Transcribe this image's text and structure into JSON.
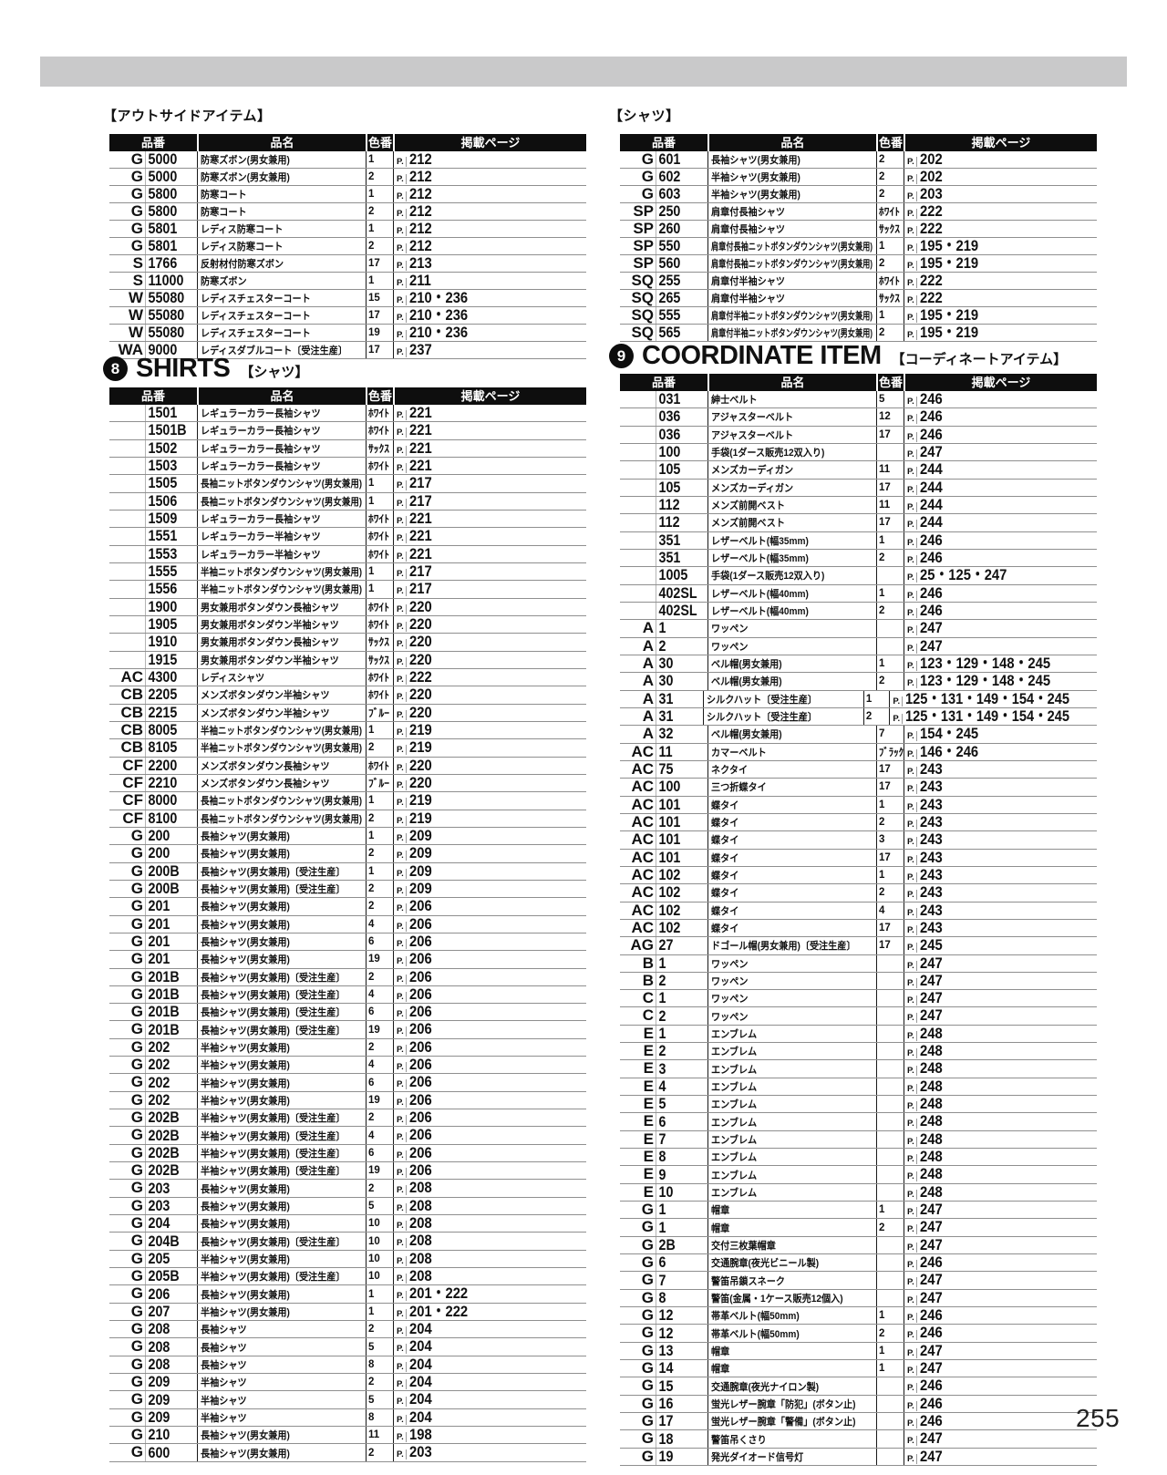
{
  "page_number": "255",
  "page_prefix": "P.",
  "col_headers": [
    "品番",
    "品名",
    "色番",
    "掲載ページ"
  ],
  "sections": {
    "outside": {
      "title": "【アウトサイドアイテム】",
      "rows": [
        [
          "G",
          "5000",
          "防寒ズボン(男女兼用)",
          "1",
          "212"
        ],
        [
          "G",
          "5000",
          "防寒ズボン(男女兼用)",
          "2",
          "212"
        ],
        [
          "G",
          "5800",
          "防寒コート",
          "1",
          "212"
        ],
        [
          "G",
          "5800",
          "防寒コート",
          "2",
          "212"
        ],
        [
          "G",
          "5801",
          "レディス防寒コート",
          "1",
          "212"
        ],
        [
          "G",
          "5801",
          "レディス防寒コート",
          "2",
          "212"
        ],
        [
          "S",
          "1766",
          "反射材付防寒ズボン",
          "17",
          "213"
        ],
        [
          "S",
          "11000",
          "防寒ズボン",
          "1",
          "211"
        ],
        [
          "W",
          "55080",
          "レディスチェスターコート",
          "15",
          "210・236"
        ],
        [
          "W",
          "55080",
          "レディスチェスターコート",
          "17",
          "210・236"
        ],
        [
          "W",
          "55080",
          "レディスチェスターコート",
          "19",
          "210・236"
        ],
        [
          "WA",
          "9000",
          "レディスダブルコート〔受注生産〕",
          "17",
          "237"
        ]
      ]
    },
    "shirts": {
      "badge": "8",
      "title": "SHIRTS",
      "subtitle": "【シャツ】",
      "rows": [
        [
          "",
          "1501",
          "レギュラーカラー長袖シャツ",
          "ﾎﾜｲﾄ",
          "221"
        ],
        [
          "",
          "1501B",
          "レギュラーカラー長袖シャツ",
          "ﾎﾜｲﾄ",
          "221"
        ],
        [
          "",
          "1502",
          "レギュラーカラー長袖シャツ",
          "ｻｯｸｽ",
          "221"
        ],
        [
          "",
          "1503",
          "レギュラーカラー長袖シャツ",
          "ﾎﾜｲﾄ",
          "221"
        ],
        [
          "",
          "1505",
          "長袖ニットボタンダウンシャツ(男女兼用)",
          "1",
          "217"
        ],
        [
          "",
          "1506",
          "長袖ニットボタンダウンシャツ(男女兼用)",
          "1",
          "217"
        ],
        [
          "",
          "1509",
          "レギュラーカラー長袖シャツ",
          "ﾎﾜｲﾄ",
          "221"
        ],
        [
          "",
          "1551",
          "レギュラーカラー半袖シャツ",
          "ﾎﾜｲﾄ",
          "221"
        ],
        [
          "",
          "1553",
          "レギュラーカラー半袖シャツ",
          "ﾎﾜｲﾄ",
          "221"
        ],
        [
          "",
          "1555",
          "半袖ニットボタンダウンシャツ(男女兼用)",
          "1",
          "217"
        ],
        [
          "",
          "1556",
          "半袖ニットボタンダウンシャツ(男女兼用)",
          "1",
          "217"
        ],
        [
          "",
          "1900",
          "男女兼用ボタンダウン長袖シャツ",
          "ﾎﾜｲﾄ",
          "220"
        ],
        [
          "",
          "1905",
          "男女兼用ボタンダウン半袖シャツ",
          "ﾎﾜｲﾄ",
          "220"
        ],
        [
          "",
          "1910",
          "男女兼用ボタンダウン長袖シャツ",
          "ｻｯｸｽ",
          "220"
        ],
        [
          "",
          "1915",
          "男女兼用ボタンダウン半袖シャツ",
          "ｻｯｸｽ",
          "220"
        ],
        [
          "AC",
          "4300",
          "レディスシャツ",
          "ﾎﾜｲﾄ",
          "222"
        ],
        [
          "CB",
          "2205",
          "メンズボタンダウン半袖シャツ",
          "ﾎﾜｲﾄ",
          "220"
        ],
        [
          "CB",
          "2215",
          "メンズボタンダウン半袖シャツ",
          "ﾌﾞﾙｰ",
          "220"
        ],
        [
          "CB",
          "8005",
          "半袖ニットボタンダウンシャツ(男女兼用)",
          "1",
          "219"
        ],
        [
          "CB",
          "8105",
          "半袖ニットボタンダウンシャツ(男女兼用)",
          "2",
          "219"
        ],
        [
          "CF",
          "2200",
          "メンズボタンダウン長袖シャツ",
          "ﾎﾜｲﾄ",
          "220"
        ],
        [
          "CF",
          "2210",
          "メンズボタンダウン長袖シャツ",
          "ﾌﾞﾙｰ",
          "220"
        ],
        [
          "CF",
          "8000",
          "長袖ニットボタンダウンシャツ(男女兼用)",
          "1",
          "219"
        ],
        [
          "CF",
          "8100",
          "長袖ニットボタンダウンシャツ(男女兼用)",
          "2",
          "219"
        ],
        [
          "G",
          "200",
          "長袖シャツ(男女兼用)",
          "1",
          "209"
        ],
        [
          "G",
          "200",
          "長袖シャツ(男女兼用)",
          "2",
          "209"
        ],
        [
          "G",
          "200B",
          "長袖シャツ(男女兼用)〔受注生産〕",
          "1",
          "209"
        ],
        [
          "G",
          "200B",
          "長袖シャツ(男女兼用)〔受注生産〕",
          "2",
          "209"
        ],
        [
          "G",
          "201",
          "長袖シャツ(男女兼用)",
          "2",
          "206"
        ],
        [
          "G",
          "201",
          "長袖シャツ(男女兼用)",
          "4",
          "206"
        ],
        [
          "G",
          "201",
          "長袖シャツ(男女兼用)",
          "6",
          "206"
        ],
        [
          "G",
          "201",
          "長袖シャツ(男女兼用)",
          "19",
          "206"
        ],
        [
          "G",
          "201B",
          "長袖シャツ(男女兼用)〔受注生産〕",
          "2",
          "206"
        ],
        [
          "G",
          "201B",
          "長袖シャツ(男女兼用)〔受注生産〕",
          "4",
          "206"
        ],
        [
          "G",
          "201B",
          "長袖シャツ(男女兼用)〔受注生産〕",
          "6",
          "206"
        ],
        [
          "G",
          "201B",
          "長袖シャツ(男女兼用)〔受注生産〕",
          "19",
          "206"
        ],
        [
          "G",
          "202",
          "半袖シャツ(男女兼用)",
          "2",
          "206"
        ],
        [
          "G",
          "202",
          "半袖シャツ(男女兼用)",
          "4",
          "206"
        ],
        [
          "G",
          "202",
          "半袖シャツ(男女兼用)",
          "6",
          "206"
        ],
        [
          "G",
          "202",
          "半袖シャツ(男女兼用)",
          "19",
          "206"
        ],
        [
          "G",
          "202B",
          "半袖シャツ(男女兼用)〔受注生産〕",
          "2",
          "206"
        ],
        [
          "G",
          "202B",
          "半袖シャツ(男女兼用)〔受注生産〕",
          "4",
          "206"
        ],
        [
          "G",
          "202B",
          "半袖シャツ(男女兼用)〔受注生産〕",
          "6",
          "206"
        ],
        [
          "G",
          "202B",
          "半袖シャツ(男女兼用)〔受注生産〕",
          "19",
          "206"
        ],
        [
          "G",
          "203",
          "長袖シャツ(男女兼用)",
          "2",
          "208"
        ],
        [
          "G",
          "203",
          "長袖シャツ(男女兼用)",
          "5",
          "208"
        ],
        [
          "G",
          "204",
          "長袖シャツ(男女兼用)",
          "10",
          "208"
        ],
        [
          "G",
          "204B",
          "長袖シャツ(男女兼用)〔受注生産〕",
          "10",
          "208"
        ],
        [
          "G",
          "205",
          "半袖シャツ(男女兼用)",
          "10",
          "208"
        ],
        [
          "G",
          "205B",
          "半袖シャツ(男女兼用)〔受注生産〕",
          "10",
          "208"
        ],
        [
          "G",
          "206",
          "長袖シャツ(男女兼用)",
          "1",
          "201・222"
        ],
        [
          "G",
          "207",
          "半袖シャツ(男女兼用)",
          "1",
          "201・222"
        ],
        [
          "G",
          "208",
          "長袖シャツ",
          "2",
          "204"
        ],
        [
          "G",
          "208",
          "長袖シャツ",
          "5",
          "204"
        ],
        [
          "G",
          "208",
          "長袖シャツ",
          "8",
          "204"
        ],
        [
          "G",
          "209",
          "半袖シャツ",
          "2",
          "204"
        ],
        [
          "G",
          "209",
          "半袖シャツ",
          "5",
          "204"
        ],
        [
          "G",
          "209",
          "半袖シャツ",
          "8",
          "204"
        ],
        [
          "G",
          "210",
          "長袖シャツ(男女兼用)",
          "11",
          "198"
        ],
        [
          "G",
          "600",
          "長袖シャツ(男女兼用)",
          "2",
          "203"
        ]
      ]
    },
    "shirts2": {
      "title": "【シャツ】",
      "rows": [
        [
          "G",
          "601",
          "長袖シャツ(男女兼用)",
          "2",
          "202"
        ],
        [
          "G",
          "602",
          "半袖シャツ(男女兼用)",
          "2",
          "202"
        ],
        [
          "G",
          "603",
          "半袖シャツ(男女兼用)",
          "2",
          "203"
        ],
        [
          "SP",
          "250",
          "肩章付長袖シャツ",
          "ﾎﾜｲﾄ",
          "222"
        ],
        [
          "SP",
          "260",
          "肩章付長袖シャツ",
          "ｻｯｸｽ",
          "222"
        ],
        [
          "SP",
          "550",
          "肩章付長袖ニットボタンダウンシャツ(男女兼用)",
          "1",
          "195・219"
        ],
        [
          "SP",
          "560",
          "肩章付長袖ニットボタンダウンシャツ(男女兼用)",
          "2",
          "195・219"
        ],
        [
          "SQ",
          "255",
          "肩章付半袖シャツ",
          "ﾎﾜｲﾄ",
          "222"
        ],
        [
          "SQ",
          "265",
          "肩章付半袖シャツ",
          "ｻｯｸｽ",
          "222"
        ],
        [
          "SQ",
          "555",
          "肩章付半袖ニットボタンダウンシャツ(男女兼用)",
          "1",
          "195・219"
        ],
        [
          "SQ",
          "565",
          "肩章付半袖ニットボタンダウンシャツ(男女兼用)",
          "2",
          "195・219"
        ]
      ]
    },
    "coordinate": {
      "badge": "9",
      "title": "COORDINATE ITEM",
      "subtitle": "【コーディネートアイテム】",
      "rows": [
        [
          "",
          "031",
          "紳士ベルト",
          "5",
          "246"
        ],
        [
          "",
          "036",
          "アジャスターベルト",
          "12",
          "246"
        ],
        [
          "",
          "036",
          "アジャスターベルト",
          "17",
          "246"
        ],
        [
          "",
          "100",
          "手袋(1ダース販売12双入り)",
          "",
          "247"
        ],
        [
          "",
          "105",
          "メンズカーディガン",
          "11",
          "244"
        ],
        [
          "",
          "105",
          "メンズカーディガン",
          "17",
          "244"
        ],
        [
          "",
          "112",
          "メンズ前開ベスト",
          "11",
          "244"
        ],
        [
          "",
          "112",
          "メンズ前開ベスト",
          "17",
          "244"
        ],
        [
          "",
          "351",
          "レザーベルト(幅35mm)",
          "1",
          "246"
        ],
        [
          "",
          "351",
          "レザーベルト(幅35mm)",
          "2",
          "246"
        ],
        [
          "",
          "1005",
          "手袋(1ダース販売12双入り)",
          "",
          "25・125・247"
        ],
        [
          "",
          "402SL",
          "レザーベルト(幅40mm)",
          "1",
          "246"
        ],
        [
          "",
          "402SL",
          "レザーベルト(幅40mm)",
          "2",
          "246"
        ],
        [
          "A",
          "1",
          "ワッペン",
          "",
          "247"
        ],
        [
          "A",
          "2",
          "ワッペン",
          "",
          "247"
        ],
        [
          "A",
          "30",
          "ベル帽(男女兼用)",
          "1",
          "123・129・148・245"
        ],
        [
          "A",
          "30",
          "ベル帽(男女兼用)",
          "2",
          "123・129・148・245"
        ],
        [
          "A",
          "31",
          "シルクハット〔受注生産〕",
          "1",
          "125・131・149・154・245"
        ],
        [
          "A",
          "31",
          "シルクハット〔受注生産〕",
          "2",
          "125・131・149・154・245"
        ],
        [
          "A",
          "32",
          "ベル帽(男女兼用)",
          "7",
          "154・245"
        ],
        [
          "AC",
          "11",
          "カマーベルト",
          "ﾌﾞﾗｯｸ",
          "146・246"
        ],
        [
          "AC",
          "75",
          "ネクタイ",
          "17",
          "243"
        ],
        [
          "AC",
          "100",
          "三つ折蝶タイ",
          "17",
          "243"
        ],
        [
          "AC",
          "101",
          "蝶タイ",
          "1",
          "243"
        ],
        [
          "AC",
          "101",
          "蝶タイ",
          "2",
          "243"
        ],
        [
          "AC",
          "101",
          "蝶タイ",
          "3",
          "243"
        ],
        [
          "AC",
          "101",
          "蝶タイ",
          "17",
          "243"
        ],
        [
          "AC",
          "102",
          "蝶タイ",
          "1",
          "243"
        ],
        [
          "AC",
          "102",
          "蝶タイ",
          "2",
          "243"
        ],
        [
          "AC",
          "102",
          "蝶タイ",
          "4",
          "243"
        ],
        [
          "AC",
          "102",
          "蝶タイ",
          "17",
          "243"
        ],
        [
          "AG",
          "27",
          "ドゴール帽(男女兼用)〔受注生産〕",
          "17",
          "245"
        ],
        [
          "B",
          "1",
          "ワッペン",
          "",
          "247"
        ],
        [
          "B",
          "2",
          "ワッペン",
          "",
          "247"
        ],
        [
          "C",
          "1",
          "ワッペン",
          "",
          "247"
        ],
        [
          "C",
          "2",
          "ワッペン",
          "",
          "247"
        ],
        [
          "E",
          "1",
          "エンブレム",
          "",
          "248"
        ],
        [
          "E",
          "2",
          "エンブレム",
          "",
          "248"
        ],
        [
          "E",
          "3",
          "エンブレム",
          "",
          "248"
        ],
        [
          "E",
          "4",
          "エンブレム",
          "",
          "248"
        ],
        [
          "E",
          "5",
          "エンブレム",
          "",
          "248"
        ],
        [
          "E",
          "6",
          "エンブレム",
          "",
          "248"
        ],
        [
          "E",
          "7",
          "エンブレム",
          "",
          "248"
        ],
        [
          "E",
          "8",
          "エンブレム",
          "",
          "248"
        ],
        [
          "E",
          "9",
          "エンブレム",
          "",
          "248"
        ],
        [
          "E",
          "10",
          "エンブレム",
          "",
          "248"
        ],
        [
          "G",
          "1",
          "帽章",
          "1",
          "247"
        ],
        [
          "G",
          "1",
          "帽章",
          "2",
          "247"
        ],
        [
          "G",
          "2B",
          "交付三枚葉帽章",
          "",
          "247"
        ],
        [
          "G",
          "6",
          "交通腕章(夜光ビニール製)",
          "",
          "246"
        ],
        [
          "G",
          "7",
          "警笛吊鎖スネーク",
          "",
          "247"
        ],
        [
          "G",
          "8",
          "警笛(金属・1ケース販売12個入)",
          "",
          "247"
        ],
        [
          "G",
          "12",
          "帯革ベルト(幅50mm)",
          "1",
          "246"
        ],
        [
          "G",
          "12",
          "帯革ベルト(幅50mm)",
          "2",
          "246"
        ],
        [
          "G",
          "13",
          "帽章",
          "1",
          "247"
        ],
        [
          "G",
          "14",
          "帽章",
          "1",
          "247"
        ],
        [
          "G",
          "15",
          "交通腕章(夜光ナイロン製)",
          "",
          "246"
        ],
        [
          "G",
          "16",
          "蛍光レザー腕章「防犯」(ボタン止)",
          "",
          "246"
        ],
        [
          "G",
          "17",
          "蛍光レザー腕章「警備」(ボタン止)",
          "",
          "246"
        ],
        [
          "G",
          "18",
          "警笛吊くさり",
          "",
          "247"
        ],
        [
          "G",
          "19",
          "発光ダイオード信号灯",
          "",
          "247"
        ]
      ]
    }
  }
}
